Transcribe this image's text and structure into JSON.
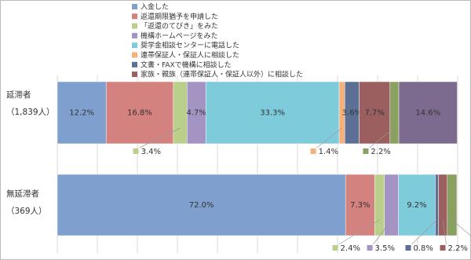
{
  "chart_data": {
    "type": "stacked-bar-horizontal",
    "categories": [
      "延滞者（1,839人）",
      "無延滞者（369人）"
    ],
    "xlim": [
      0,
      100
    ],
    "xticks": [
      0,
      10,
      20,
      30,
      40,
      50,
      60,
      70,
      80,
      90,
      100
    ],
    "grid": true,
    "series": [
      {
        "name": "入金した",
        "color": "#7f9fcf",
        "values": [
          12.2,
          72.0
        ],
        "value_labels": [
          "12.2%",
          "72.0%"
        ]
      },
      {
        "name": "返還期限猶予を申請した",
        "color": "#d4827f",
        "values": [
          16.8,
          7.3
        ],
        "value_labels": [
          "16.8%",
          "7.3%"
        ]
      },
      {
        "name": "「返還のてびき」をみた",
        "color": "#b9cf8a",
        "values": [
          3.4,
          2.4
        ],
        "value_labels": [
          "3.4%",
          "2.4%"
        ]
      },
      {
        "name": "機構ホームページをみた",
        "color": "#a394c4",
        "values": [
          4.7,
          3.5
        ],
        "value_labels": [
          "4.7%",
          "3.5%"
        ]
      },
      {
        "name": "奨学金相談センターに電話した",
        "color": "#7ecbdc",
        "values": [
          33.3,
          9.2
        ],
        "value_labels": [
          "33.3%",
          "9.2%"
        ]
      },
      {
        "name": "連帯保証人・保証人に相談した",
        "color": "#f5b07c",
        "values": [
          1.4,
          0
        ],
        "value_labels": [
          "1.4%",
          null
        ]
      },
      {
        "name": "文書・FAXで機構に相談した",
        "color": "#5c6f94",
        "values": [
          3.6,
          0.8
        ],
        "value_labels": [
          "3.6%",
          "0.8%"
        ]
      },
      {
        "name": "家族・親族（連帯保証人・保証人以外）に相談した",
        "color": "#9b5f5f",
        "values": [
          7.7,
          2.2
        ],
        "value_labels": [
          "7.7%",
          "2.2%"
        ]
      },
      {
        "color": "#8aa061",
        "values": [
          2.2,
          2.4
        ],
        "value_labels": [
          "2.2%",
          "2.4%"
        ]
      },
      {
        "color": "#7c6b8e",
        "values": [
          14.6,
          0
        ],
        "value_labels": [
          "14.6%",
          null
        ]
      }
    ]
  }
}
